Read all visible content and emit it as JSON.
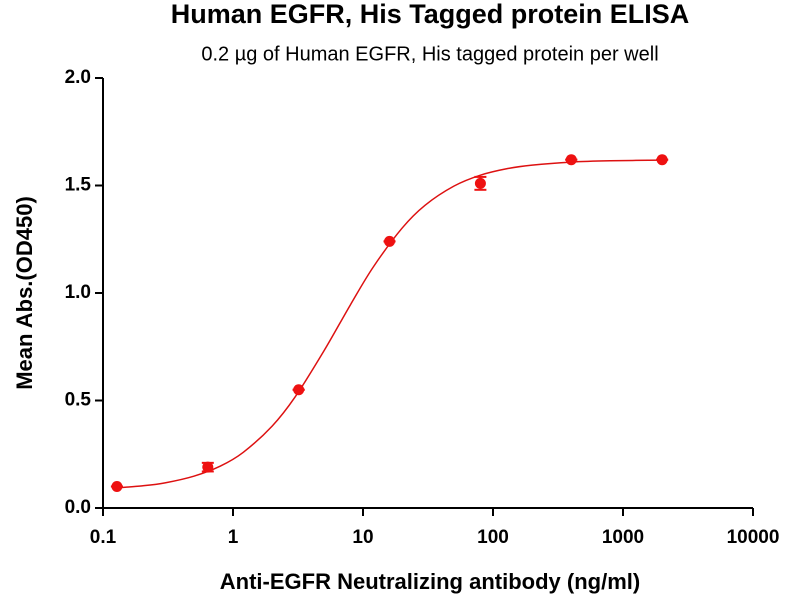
{
  "chart_data": {
    "type": "dose-response",
    "title": "Human EGFR, His Tagged protein ELISA",
    "subtitle": "0.2 µg of Human EGFR, His tagged protein per well",
    "x_label": "Anti-EGFR Neutralizing antibody (ng/ml)",
    "y_label": "Mean Abs.(OD450)",
    "x_scale": "log",
    "xlim": [
      0.1,
      10000
    ],
    "xticks": [
      0.1,
      1,
      10,
      100,
      1000,
      10000
    ],
    "ylim": [
      0,
      2
    ],
    "yticks": [
      {
        "value": 0,
        "label": "0.0"
      },
      0.5,
      {
        "value": 1,
        "label": "1.0"
      },
      1.5,
      {
        "value": 2,
        "label": "2.0"
      }
    ],
    "points": {
      "color": "#ee1111",
      "x": [
        0.128,
        0.64,
        3.2,
        16,
        80,
        400,
        2000
      ],
      "values": [
        0.1,
        0.19,
        0.55,
        1.24,
        1.51,
        1.62,
        1.62
      ],
      "errors": [
        0,
        0.02,
        0,
        0,
        0.03,
        0,
        0
      ]
    },
    "curve": {
      "color": "#dd1111",
      "x": [
        0.128,
        0.2,
        0.3,
        0.5,
        0.8,
        1.2,
        2,
        3,
        5,
        8,
        12,
        20,
        30,
        50,
        80,
        130,
        200,
        400,
        800,
        2000
      ],
      "values": [
        0.094,
        0.103,
        0.117,
        0.148,
        0.195,
        0.259,
        0.381,
        0.516,
        0.73,
        0.945,
        1.121,
        1.302,
        1.408,
        1.497,
        1.548,
        1.579,
        1.595,
        1.609,
        1.615,
        1.618
      ]
    }
  }
}
